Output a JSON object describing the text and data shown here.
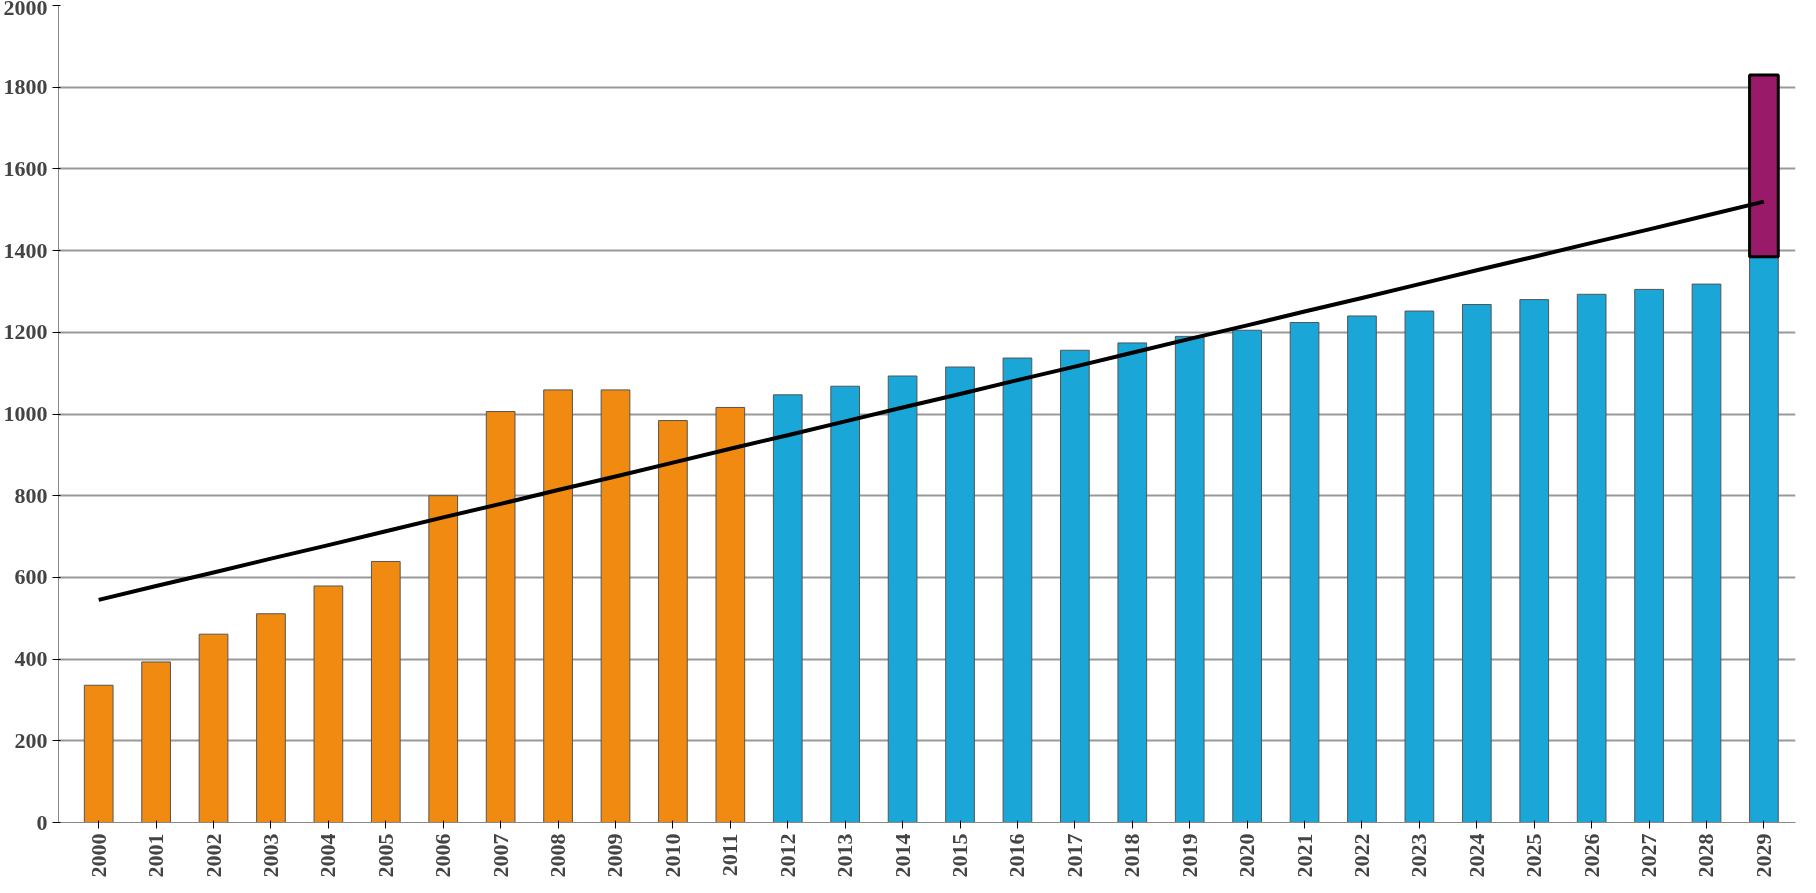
{
  "chart_data": {
    "type": "bar",
    "categories": [
      "2000",
      "2001",
      "2002",
      "2003",
      "2004",
      "2005",
      "2006",
      "2007",
      "2008",
      "2009",
      "2010",
      "2011",
      "2012",
      "2013",
      "2014",
      "2015",
      "2016",
      "2017",
      "2018",
      "2019",
      "2020",
      "2021",
      "2022",
      "2023",
      "2024",
      "2025",
      "2026",
      "2027",
      "2028",
      "2029"
    ],
    "series": [
      {
        "values": [
          336,
          393,
          461,
          511,
          579,
          639,
          800,
          1006,
          1059,
          1059,
          984,
          1016,
          1047,
          1068,
          1093,
          1115,
          1137,
          1156,
          1174,
          1190,
          1205,
          1224,
          1240,
          1252,
          1268,
          1280,
          1293,
          1305,
          1318,
          1390
        ],
        "colors": [
          "#f08a10",
          "#f08a10",
          "#f08a10",
          "#f08a10",
          "#f08a10",
          "#f08a10",
          "#f08a10",
          "#f08a10",
          "#f08a10",
          "#f08a10",
          "#f08a10",
          "#f08a10",
          "#1aa6d6",
          "#1aa6d6",
          "#1aa6d6",
          "#1aa6d6",
          "#1aa6d6",
          "#1aa6d6",
          "#1aa6d6",
          "#1aa6d6",
          "#1aa6d6",
          "#1aa6d6",
          "#1aa6d6",
          "#1aa6d6",
          "#1aa6d6",
          "#1aa6d6",
          "#1aa6d6",
          "#1aa6d6",
          "#1aa6d6",
          "#1aa6d6"
        ]
      },
      {
        "color": "#9a1a6a",
        "base": [
          null,
          null,
          null,
          null,
          null,
          null,
          null,
          null,
          null,
          null,
          null,
          null,
          null,
          null,
          null,
          null,
          null,
          null,
          null,
          null,
          null,
          null,
          null,
          null,
          null,
          null,
          null,
          null,
          null,
          1385
        ],
        "values": [
          null,
          null,
          null,
          null,
          null,
          null,
          null,
          null,
          null,
          null,
          null,
          null,
          null,
          null,
          null,
          null,
          null,
          null,
          null,
          null,
          null,
          null,
          null,
          null,
          null,
          null,
          null,
          null,
          null,
          445
        ]
      },
      {
        "type": "line",
        "color": "#000000",
        "values": [
          545,
          579,
          612,
          646,
          679,
          713,
          747,
          780,
          814,
          847,
          881,
          915,
          948,
          982,
          1016,
          1049,
          1083,
          1116,
          1150,
          1184,
          1217,
          1251,
          1284,
          1318,
          1352,
          1385,
          1419,
          1452,
          1486,
          1520
        ]
      }
    ],
    "ylim": [
      0,
      2000
    ],
    "yticks": [
      0,
      200,
      400,
      600,
      800,
      1000,
      1200,
      1400,
      1600,
      1800,
      2000
    ],
    "grid": "y"
  }
}
